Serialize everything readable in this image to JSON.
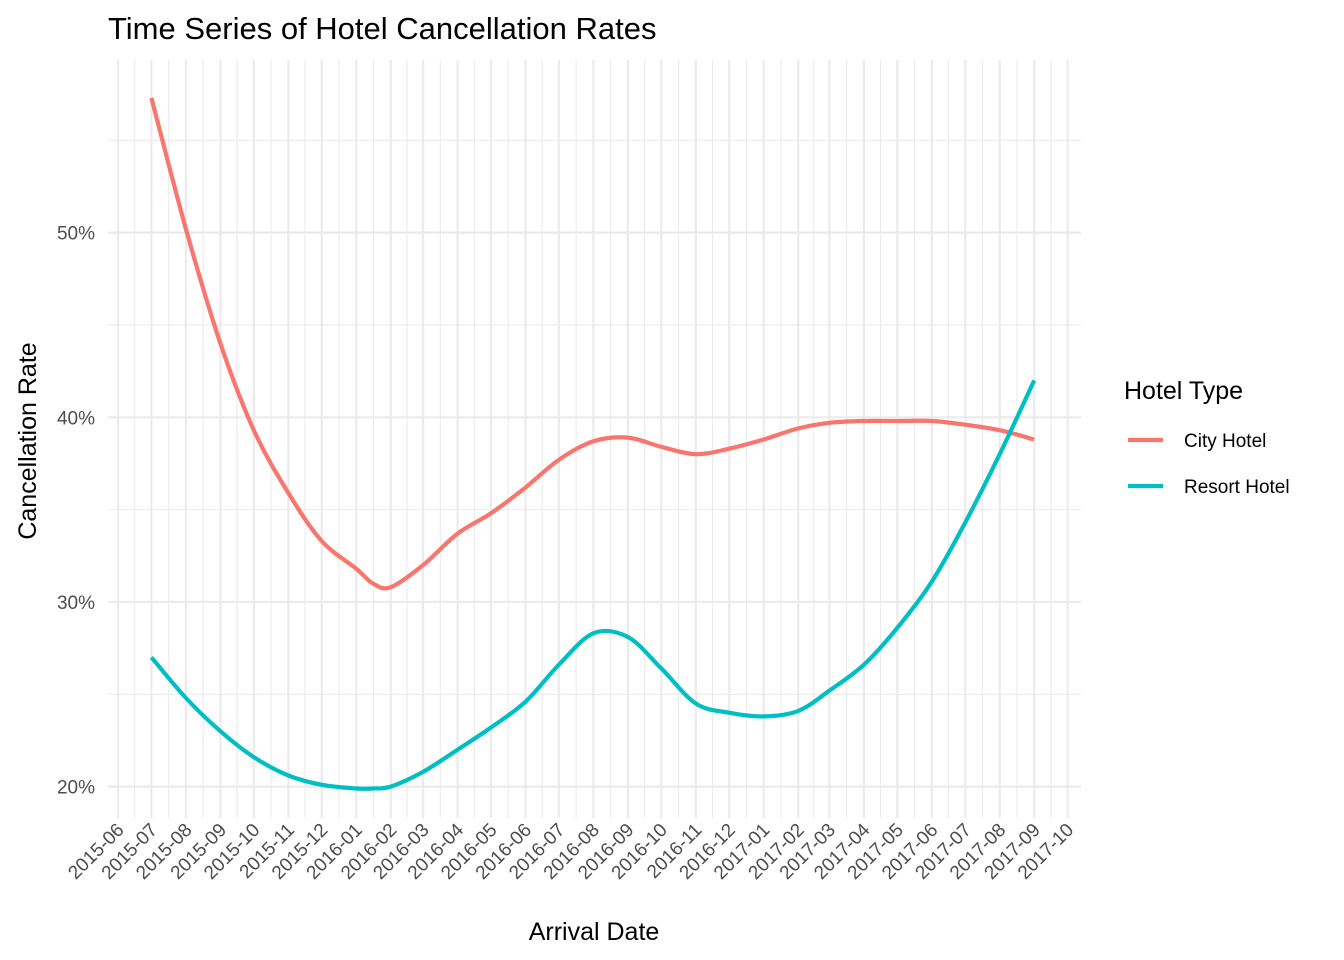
{
  "chart_data": {
    "type": "line",
    "title": "Time Series of Hotel Cancellation Rates",
    "xlabel": "Arrival Date",
    "ylabel": "Cancellation Rate",
    "x_type": "date",
    "xlim": [
      "2015-05-23",
      "2017-10-13"
    ],
    "ylim": [
      0.183,
      0.5935
    ],
    "y_ticks": [
      0.2,
      0.3,
      0.4,
      0.5
    ],
    "y_tick_labels": [
      "20%",
      "30%",
      "40%",
      "50%"
    ],
    "x_ticks": [
      "2015-06-01",
      "2015-07-01",
      "2015-08-01",
      "2015-09-01",
      "2015-10-01",
      "2015-11-01",
      "2015-12-01",
      "2016-01-01",
      "2016-02-01",
      "2016-03-01",
      "2016-04-01",
      "2016-05-01",
      "2016-06-01",
      "2016-07-01",
      "2016-08-01",
      "2016-09-01",
      "2016-10-01",
      "2016-11-01",
      "2016-12-01",
      "2017-01-01",
      "2017-02-01",
      "2017-03-01",
      "2017-04-01",
      "2017-05-01",
      "2017-06-01",
      "2017-07-01",
      "2017-08-01",
      "2017-09-01",
      "2017-10-01"
    ],
    "x_tick_labels": [
      "2015-06",
      "2015-07",
      "2015-08",
      "2015-09",
      "2015-10",
      "2015-11",
      "2015-12",
      "2016-01",
      "2016-02",
      "2016-03",
      "2016-04",
      "2016-05",
      "2016-06",
      "2016-07",
      "2016-08",
      "2016-09",
      "2016-10",
      "2016-11",
      "2016-12",
      "2017-01",
      "2017-02",
      "2017-03",
      "2017-04",
      "2017-05",
      "2017-06",
      "2017-07",
      "2017-08",
      "2017-09",
      "2017-10"
    ],
    "grid": true,
    "legend": {
      "title": "Hotel Type",
      "placement": "right"
    },
    "x": [
      "2015-07-01",
      "2015-08-01",
      "2015-09-01",
      "2015-10-01",
      "2015-11-01",
      "2015-12-01",
      "2016-01-01",
      "2016-01-16",
      "2016-02-01",
      "2016-03-01",
      "2016-04-01",
      "2016-05-01",
      "2016-06-01",
      "2016-07-01",
      "2016-08-01",
      "2016-09-01",
      "2016-10-01",
      "2016-11-01",
      "2016-12-01",
      "2017-01-01",
      "2017-02-01",
      "2017-03-01",
      "2017-04-01",
      "2017-05-01",
      "2017-06-01",
      "2017-07-01",
      "2017-08-01",
      "2017-09-01"
    ],
    "series": [
      {
        "name": "City Hotel",
        "color": "#F8766D",
        "values": [
          0.573,
          0.502,
          0.44,
          0.393,
          0.359,
          0.333,
          0.318,
          0.31,
          0.308,
          0.32,
          0.337,
          0.348,
          0.362,
          0.377,
          0.387,
          0.389,
          0.384,
          0.38,
          0.383,
          0.388,
          0.394,
          0.397,
          0.398,
          0.398,
          0.398,
          0.396,
          0.393,
          0.388
        ]
      },
      {
        "name": "Resort Hotel",
        "color": "#00BFC4",
        "values": [
          0.27,
          0.248,
          0.23,
          0.216,
          0.206,
          0.201,
          0.199,
          0.199,
          0.2,
          0.208,
          0.22,
          0.232,
          0.246,
          0.266,
          0.283,
          0.281,
          0.264,
          0.245,
          0.24,
          0.238,
          0.241,
          0.252,
          0.266,
          0.286,
          0.311,
          0.343,
          0.38,
          0.42
        ]
      }
    ]
  }
}
